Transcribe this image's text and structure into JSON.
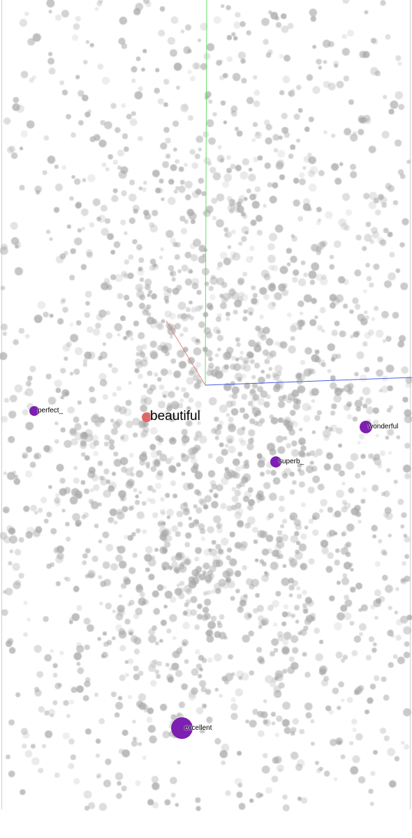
{
  "colors": {
    "background": "#ffffff",
    "cloud_point": "#a8a8a8",
    "neighbor_point": "#7d1fb2",
    "selected_point": "#e06666",
    "axis_x": "#e08080",
    "axis_y": "#66dd66",
    "axis_z": "#4a5ce0"
  },
  "selected": {
    "word": "beautiful"
  },
  "neighbors": [
    {
      "word": "perfect_"
    },
    {
      "word": "wonderful"
    },
    {
      "word": "superb_"
    },
    {
      "word": "excellent"
    }
  ]
}
